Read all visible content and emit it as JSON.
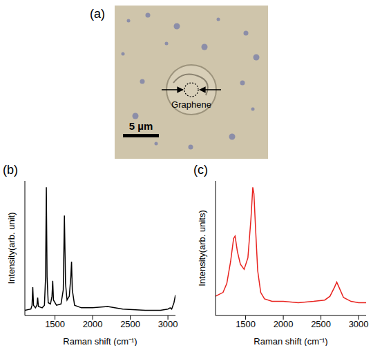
{
  "image_panel": {
    "label": "(a)",
    "annotation": "Graphene",
    "scale_bar": "5 µm"
  },
  "chart_data": [
    {
      "type": "line",
      "panel": "(b)",
      "x_label": "Raman shift (cm⁻¹)",
      "y_label": "Intensity(arb. unit)",
      "xlim": [
        1100,
        3100
      ],
      "xticks": [
        1500,
        2000,
        2500,
        3000
      ],
      "ylim": [
        0,
        1.05
      ],
      "yticks": [],
      "tick_labels": "x",
      "color": "#000000",
      "x": [
        1100,
        1180,
        1195,
        1205,
        1215,
        1240,
        1260,
        1270,
        1280,
        1330,
        1360,
        1375,
        1385,
        1395,
        1410,
        1440,
        1460,
        1470,
        1480,
        1520,
        1580,
        1610,
        1625,
        1640,
        1660,
        1690,
        1710,
        1720,
        1730,
        1760,
        1850,
        2000,
        2200,
        2400,
        2700,
        2900,
        3000,
        3030,
        3050,
        3080,
        3100
      ],
      "values": [
        0.04,
        0.05,
        0.08,
        0.22,
        0.08,
        0.06,
        0.08,
        0.14,
        0.07,
        0.06,
        0.08,
        0.3,
        1.0,
        0.3,
        0.1,
        0.09,
        0.15,
        0.27,
        0.12,
        0.08,
        0.09,
        0.2,
        0.78,
        0.25,
        0.12,
        0.15,
        0.3,
        0.42,
        0.2,
        0.08,
        0.06,
        0.06,
        0.07,
        0.05,
        0.04,
        0.04,
        0.05,
        0.06,
        0.05,
        0.1,
        0.16
      ]
    },
    {
      "type": "line",
      "panel": "(c)",
      "x_label": "Raman shift (cm⁻¹)",
      "y_label": "Intensity(arb. units)",
      "xlim": [
        1100,
        3100
      ],
      "xticks": [
        1500,
        2000,
        2500,
        3000
      ],
      "ylim": [
        0,
        1.05
      ],
      "yticks": [],
      "tick_labels": "x",
      "color": "#e8231f",
      "x": [
        1100,
        1200,
        1250,
        1300,
        1340,
        1360,
        1390,
        1430,
        1480,
        1530,
        1570,
        1595,
        1610,
        1630,
        1660,
        1700,
        1750,
        1850,
        2000,
        2200,
        2400,
        2550,
        2620,
        2680,
        2710,
        2740,
        2800,
        2900,
        3000,
        3100
      ],
      "values": [
        0.15,
        0.18,
        0.25,
        0.42,
        0.6,
        0.62,
        0.5,
        0.4,
        0.36,
        0.45,
        0.75,
        1.0,
        0.95,
        0.7,
        0.35,
        0.18,
        0.13,
        0.11,
        0.11,
        0.1,
        0.11,
        0.12,
        0.15,
        0.22,
        0.26,
        0.22,
        0.14,
        0.11,
        0.1,
        0.1
      ]
    }
  ]
}
